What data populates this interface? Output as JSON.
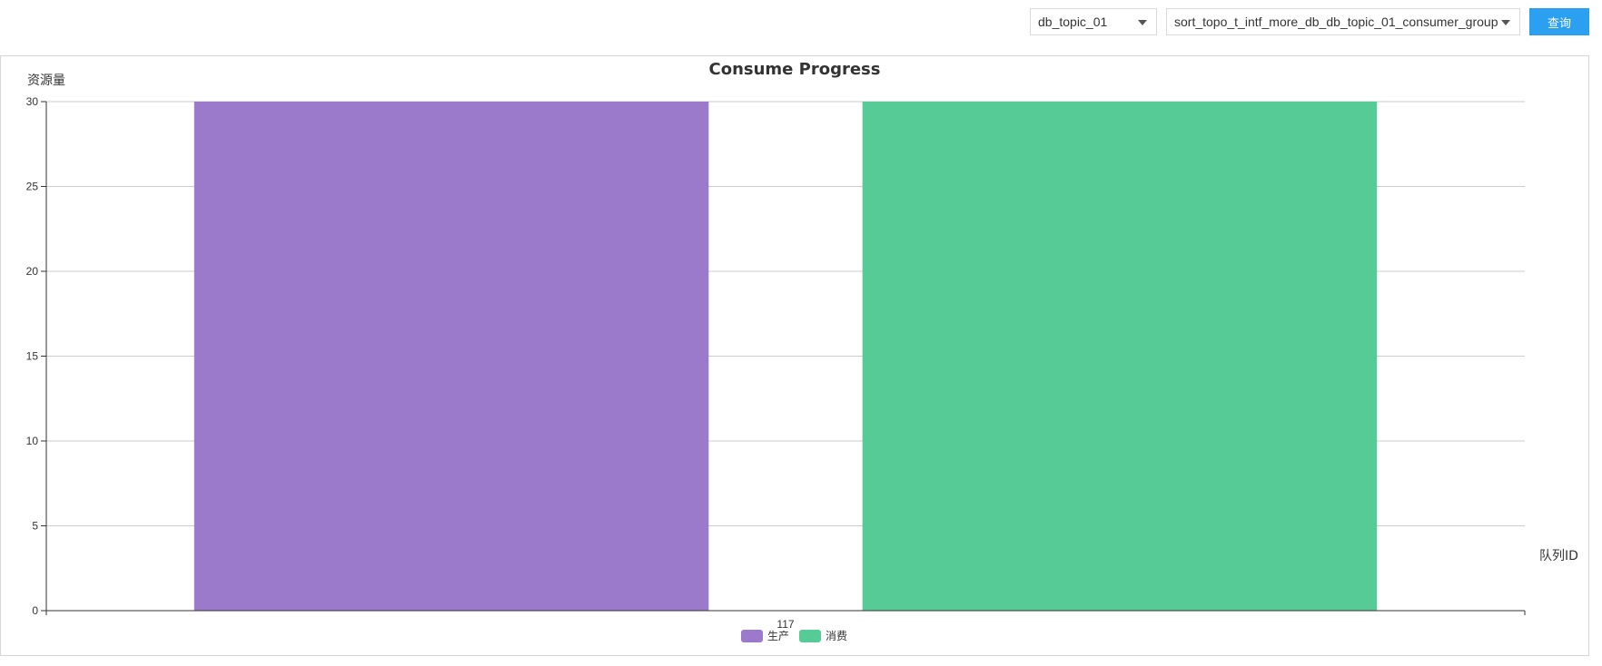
{
  "toolbar": {
    "topic_select_value": "db_topic_01",
    "group_select_value": "sort_topo_t_intf_more_db_db_topic_01_consumer_group",
    "query_label": "查询"
  },
  "chart_data": {
    "type": "bar",
    "title": "Consume Progress",
    "ylabel": "资源量",
    "xlabel": "队列ID",
    "categories": [
      "117"
    ],
    "series": [
      {
        "name": "生产",
        "values": [
          30
        ],
        "color": "#9b7acc"
      },
      {
        "name": "消费",
        "values": [
          30
        ],
        "color": "#57cb95"
      }
    ],
    "ylim": [
      0,
      30
    ],
    "yticks": [
      0,
      5,
      10,
      15,
      20,
      25,
      30
    ],
    "grid": true,
    "legend": "bottom-center"
  }
}
